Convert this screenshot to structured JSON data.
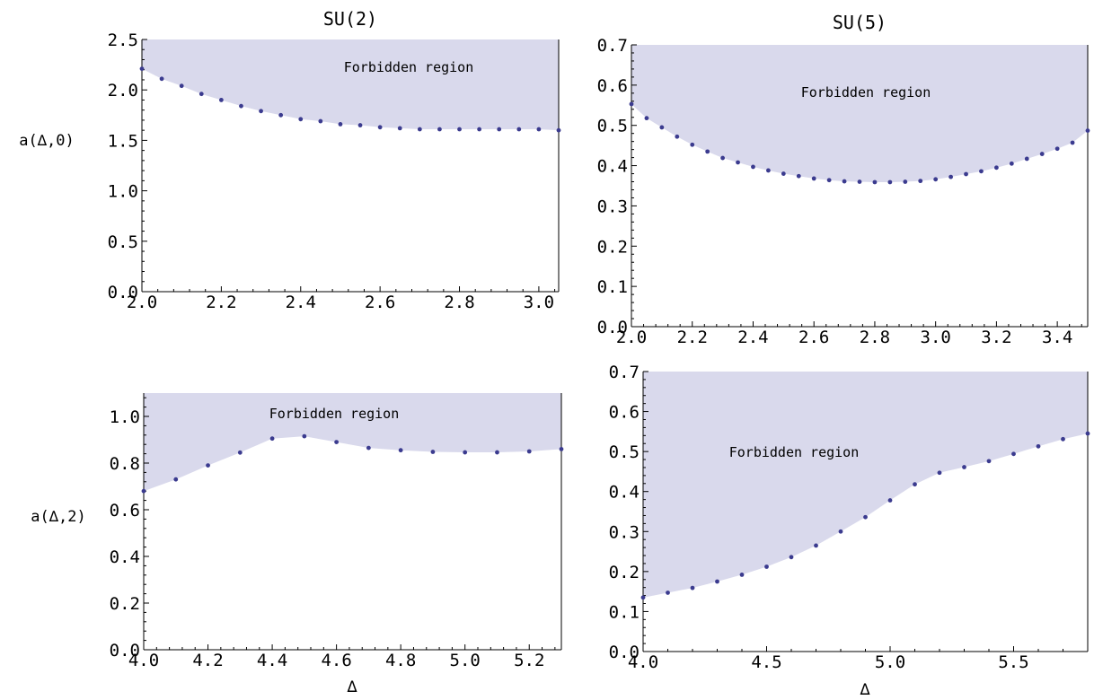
{
  "chart_data": [
    {
      "type": "area",
      "title": "SU(2)",
      "xlabel": "",
      "ylabel": "a(∆,0)",
      "xlim": [
        2.0,
        3.05
      ],
      "ylim": [
        0.0,
        2.5
      ],
      "xticks": [
        "2.0",
        "2.2",
        "2.4",
        "2.6",
        "2.8",
        "3.0"
      ],
      "yticks": [
        "0.0",
        "0.5",
        "1.0",
        "1.5",
        "2.0",
        "2.5"
      ],
      "annotation": "Forbidden region",
      "fill_color": "#d9d9ec",
      "point_color": "#3b3b8f",
      "series": [
        {
          "x": [
            2.0,
            2.05,
            2.1,
            2.15,
            2.2,
            2.25,
            2.3,
            2.35,
            2.4,
            2.45,
            2.5,
            2.55,
            2.6,
            2.65,
            2.7,
            2.75,
            2.8,
            2.85,
            2.9,
            2.95,
            3.0,
            3.05
          ],
          "y": [
            2.21,
            2.11,
            2.04,
            1.96,
            1.9,
            1.84,
            1.79,
            1.75,
            1.71,
            1.69,
            1.66,
            1.65,
            1.63,
            1.62,
            1.61,
            1.61,
            1.61,
            1.61,
            1.61,
            1.61,
            1.61,
            1.6
          ]
        }
      ]
    },
    {
      "type": "area",
      "title": "SU(5)",
      "xlabel": "",
      "ylabel": "",
      "xlim": [
        2.0,
        3.5
      ],
      "ylim": [
        0.0,
        0.7
      ],
      "xticks": [
        "2.0",
        "2.2",
        "2.4",
        "2.6",
        "2.8",
        "3.0",
        "3.2",
        "3.4"
      ],
      "yticks": [
        "0.0",
        "0.1",
        "0.2",
        "0.3",
        "0.4",
        "0.5",
        "0.6",
        "0.7"
      ],
      "annotation": "Forbidden region",
      "fill_color": "#d9d9ec",
      "point_color": "#3b3b8f",
      "series": [
        {
          "x": [
            2.0,
            2.05,
            2.1,
            2.15,
            2.2,
            2.25,
            2.3,
            2.35,
            2.4,
            2.45,
            2.5,
            2.55,
            2.6,
            2.65,
            2.7,
            2.75,
            2.8,
            2.85,
            2.9,
            2.95,
            3.0,
            3.05,
            3.1,
            3.15,
            3.2,
            3.25,
            3.3,
            3.35,
            3.4,
            3.45,
            3.5
          ],
          "y": [
            0.553,
            0.518,
            0.495,
            0.472,
            0.452,
            0.435,
            0.419,
            0.408,
            0.397,
            0.388,
            0.38,
            0.374,
            0.368,
            0.364,
            0.361,
            0.36,
            0.359,
            0.359,
            0.36,
            0.362,
            0.366,
            0.372,
            0.379,
            0.386,
            0.395,
            0.405,
            0.417,
            0.429,
            0.442,
            0.457,
            0.487
          ]
        }
      ]
    },
    {
      "type": "area",
      "title": "",
      "xlabel": "∆",
      "ylabel": "a(∆,2)",
      "xlim": [
        4.0,
        5.3
      ],
      "ylim": [
        0.0,
        1.1
      ],
      "xticks": [
        "4.0",
        "4.2",
        "4.4",
        "4.6",
        "4.8",
        "5.0",
        "5.2"
      ],
      "yticks": [
        "0.0",
        "0.2",
        "0.4",
        "0.6",
        "0.8",
        "1.0"
      ],
      "annotation": "Forbidden region",
      "fill_color": "#d9d9ec",
      "point_color": "#3b3b8f",
      "series": [
        {
          "x": [
            4.0,
            4.1,
            4.2,
            4.3,
            4.4,
            4.5,
            4.6,
            4.7,
            4.8,
            4.9,
            5.0,
            5.1,
            5.2,
            5.3
          ],
          "y": [
            0.68,
            0.73,
            0.79,
            0.845,
            0.905,
            0.915,
            0.89,
            0.865,
            0.855,
            0.848,
            0.846,
            0.846,
            0.85,
            0.86
          ]
        }
      ]
    },
    {
      "type": "area",
      "title": "",
      "xlabel": "∆",
      "ylabel": "",
      "xlim": [
        4.0,
        5.8
      ],
      "ylim": [
        0.0,
        0.7
      ],
      "xticks": [
        "4.0",
        "4.5",
        "5.0",
        "5.5"
      ],
      "yticks": [
        "0.0",
        "0.1",
        "0.2",
        "0.3",
        "0.4",
        "0.5",
        "0.6",
        "0.7"
      ],
      "annotation": "Forbidden region",
      "fill_color": "#d9d9ec",
      "point_color": "#3b3b8f",
      "series": [
        {
          "x": [
            4.0,
            4.1,
            4.2,
            4.3,
            4.4,
            4.5,
            4.6,
            4.7,
            4.8,
            4.9,
            5.0,
            5.1,
            5.2,
            5.3,
            5.4,
            5.5,
            5.6,
            5.7,
            5.8
          ],
          "y": [
            0.135,
            0.147,
            0.159,
            0.175,
            0.192,
            0.212,
            0.236,
            0.265,
            0.3,
            0.336,
            0.378,
            0.418,
            0.447,
            0.461,
            0.476,
            0.494,
            0.513,
            0.531,
            0.545
          ]
        }
      ]
    }
  ]
}
